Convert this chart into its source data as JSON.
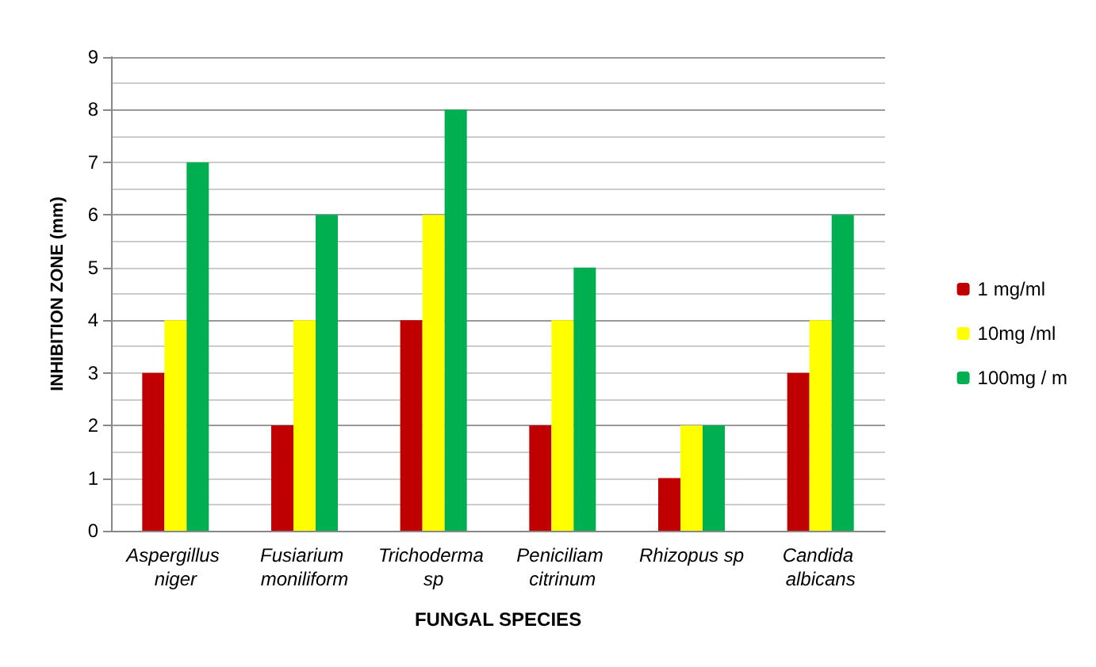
{
  "chart_data": {
    "type": "bar",
    "xlabel": "FUNGAL SPECIES",
    "ylabel": "INHIBITION ZONE (mm)",
    "categories": [
      "Aspergillus niger",
      "Fusiarium moniliform",
      "Trichoderma sp",
      "Peniciliam citrinum",
      "Rhizopus sp",
      "Candida albicans"
    ],
    "series": [
      {
        "name": "1 mg/ml",
        "color": "#c00000",
        "values": [
          3,
          2,
          4,
          2,
          1,
          3
        ]
      },
      {
        "name": "10mg /ml",
        "color": "#ffff00",
        "values": [
          4,
          4,
          6,
          4,
          2,
          4
        ]
      },
      {
        "name": "100mg / m",
        "color": "#00b050",
        "values": [
          7,
          6,
          8,
          5,
          2,
          6
        ]
      }
    ],
    "ylim": [
      0,
      9
    ],
    "yticks": [
      0,
      1,
      2,
      3,
      4,
      5,
      6,
      7,
      8,
      9
    ],
    "grid": "y",
    "legend": "right"
  }
}
